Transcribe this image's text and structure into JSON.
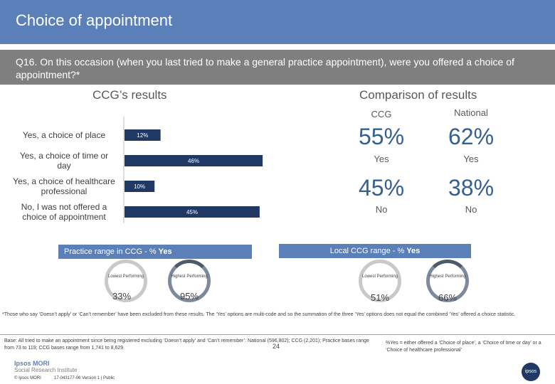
{
  "title": "Choice of appointment",
  "question": "Q16. On this occasion (when you last tried to make a general practice appointment), were you offered a choice of appointment?*",
  "ccg_heading": "CCG’s results",
  "comparison_heading": "Comparison of results",
  "chart_data": {
    "type": "bar",
    "orientation": "horizontal",
    "categories": [
      "Yes, a choice of place",
      "Yes, a choice of time or day",
      "Yes, a choice of healthcare professional",
      "No, I was not offered a choice of appointment"
    ],
    "category_lines": [
      [
        "Yes, a choice of place"
      ],
      [
        "Yes, a choice of time or",
        "day"
      ],
      [
        "Yes, a choice of healthcare",
        "professional"
      ],
      [
        "No, I was not offered a",
        "choice of appointment"
      ]
    ],
    "values": [
      12,
      46,
      10,
      45
    ],
    "value_labels": [
      "12%",
      "46%",
      "10%",
      "45%"
    ],
    "xlim": [
      0,
      100
    ],
    "bar_color": "#1f3864"
  },
  "comparison": {
    "col_ccg": "CCG",
    "col_national": "National",
    "rows": [
      {
        "ccg": "55%",
        "national": "62%",
        "label_ccg": "Yes",
        "label_national": "Yes"
      },
      {
        "ccg": "45%",
        "national": "38%",
        "label_ccg": "No",
        "label_national": "No"
      }
    ]
  },
  "practice_range": {
    "label": "Practice range in CCG - % ",
    "label_bold": "Yes",
    "lowest_label": "Lowest Performing",
    "highest_label": "Highest Performing",
    "lowest_value": "33%",
    "highest_value": "95%"
  },
  "local_range": {
    "label": "Local CCG range - % ",
    "label_bold": "Yes",
    "lowest_label": "Lowest Performing",
    "highest_label": "Highest Performing",
    "lowest_value": "51%",
    "highest_value": "66%"
  },
  "footnote": "*Those who say ‘Doesn’t apply’ or ‘Can’t remember’ have been excluded from these results. The ‘Yes’ options are multi-code and so the summation of the three ‘Yes’ options does not equal the combined ‘Yes’ offered a choice statistic.",
  "base": "Base: All tried to make an appointment since being registered excluding ‘Doesn’t apply’ and ‘Can’t remember’: National (596,802); CCG (2,201); Practice bases range from 73 to 119; CCG bases range from 1,741 to 8,629",
  "yes_definition": "%Yes = either offered a ‘Choice of place’, a ‘Choice of time or day’ or a ‘Choice of healthcare professional’",
  "page_number": "24",
  "logo_line1": "Ipsos MORI",
  "logo_line2": "Social Research Institute",
  "copyright": "© Ipsos MORI",
  "job_ref": "17-043177-06 Version 1 | Public",
  "colors": {
    "title_bar": "#5b7fb9",
    "question_bar": "#7f7f7f",
    "accent": "#365f91"
  }
}
